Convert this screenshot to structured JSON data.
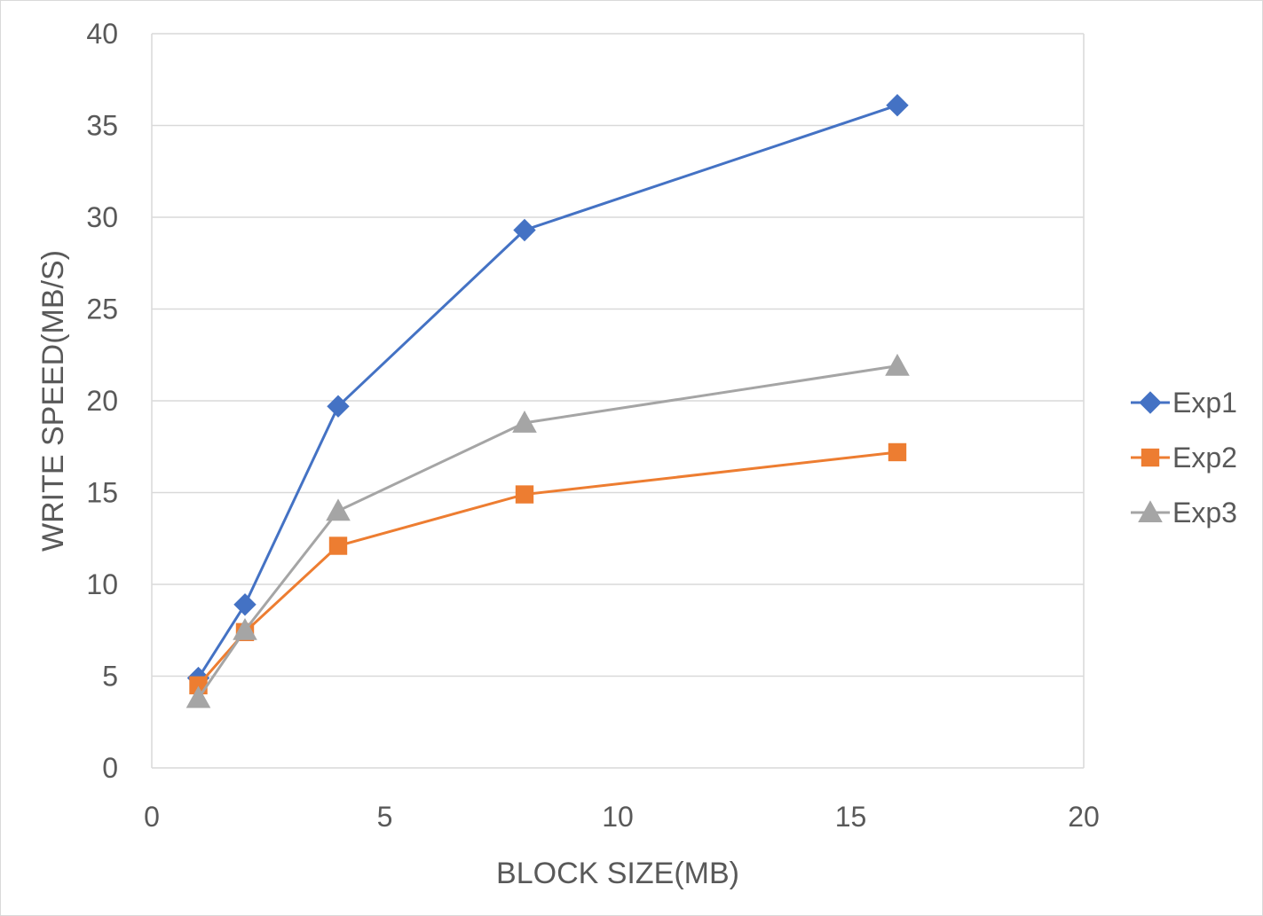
{
  "chart_data": {
    "type": "scatter",
    "title": "",
    "xlabel": "BLOCK SIZE(MB)",
    "ylabel": "WRITE  SPEED(MB/S)",
    "xlim": [
      0,
      20
    ],
    "ylim": [
      0,
      40
    ],
    "xticks": [
      0,
      5,
      10,
      15,
      20
    ],
    "yticks": [
      0,
      5,
      10,
      15,
      20,
      25,
      30,
      35,
      40
    ],
    "grid": "horizontal",
    "legend_position": "right",
    "x": [
      1,
      2,
      4,
      8,
      16
    ],
    "series": [
      {
        "name": "Exp1",
        "marker": "diamond",
        "color": "#4472c4",
        "values": [
          4.9,
          8.9,
          19.7,
          29.3,
          36.1
        ]
      },
      {
        "name": "Exp2",
        "marker": "square",
        "color": "#ed7d31",
        "values": [
          4.5,
          7.4,
          12.1,
          14.9,
          17.2
        ]
      },
      {
        "name": "Exp3",
        "marker": "triangle",
        "color": "#a5a5a5",
        "values": [
          3.8,
          7.5,
          14.0,
          18.8,
          21.9
        ]
      }
    ]
  }
}
